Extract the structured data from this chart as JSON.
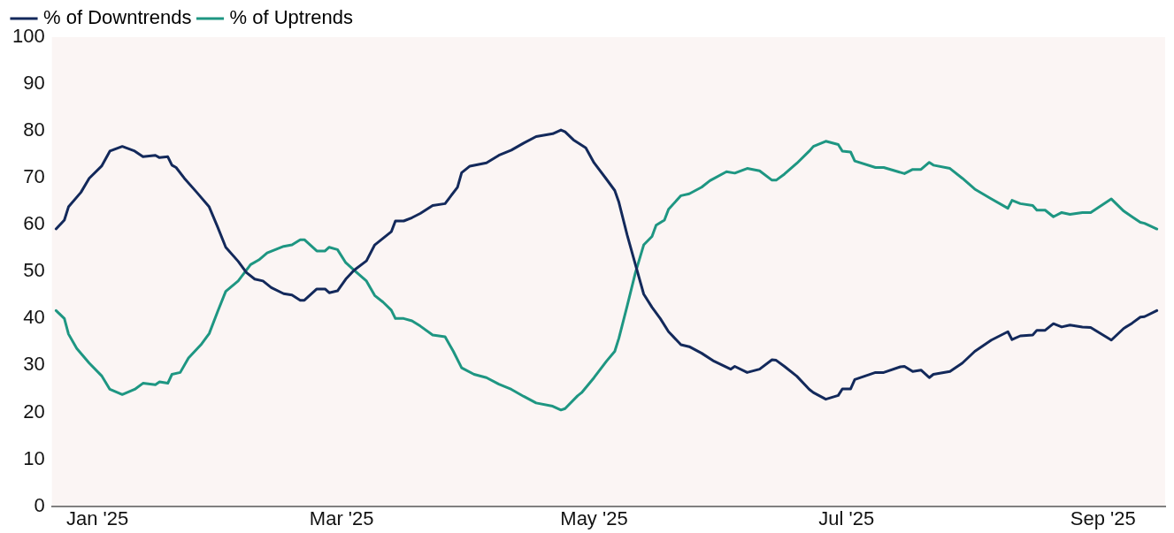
{
  "chart_data": {
    "type": "line",
    "legend": "top left",
    "grid": false,
    "marker": "none",
    "line_style": "solid",
    "xlim": [
      "2024-12-21",
      "2025-09-16"
    ],
    "xticks": [
      {
        "value": "2025-01-01",
        "label": "Jan '25"
      },
      {
        "value": "2025-03-01",
        "label": "Mar '25"
      },
      {
        "value": "2025-05-01",
        "label": "May '25"
      },
      {
        "value": "2025-07-01",
        "label": "Jul '25"
      },
      {
        "value": "2025-09-01",
        "label": "Sep '25"
      }
    ],
    "ylim": [
      0,
      100
    ],
    "yticks": [
      0,
      10,
      20,
      30,
      40,
      50,
      60,
      70,
      80,
      90,
      100
    ],
    "series": [
      {
        "name": "% of Downtrends",
        "color": "#13295b",
        "x": [
          "2024-12-22",
          "2024-12-24",
          "2024-12-25",
          "2024-12-28",
          "2024-12-30",
          "2025-01-02",
          "2025-01-04",
          "2025-01-07",
          "2025-01-10",
          "2025-01-12",
          "2025-01-15",
          "2025-01-16",
          "2025-01-18",
          "2025-01-19",
          "2025-01-20",
          "2025-01-22",
          "2025-01-25",
          "2025-01-28",
          "2025-01-30",
          "2025-02-01",
          "2025-02-04",
          "2025-02-06",
          "2025-02-08",
          "2025-02-10",
          "2025-02-12",
          "2025-02-15",
          "2025-02-17",
          "2025-02-19",
          "2025-02-20",
          "2025-02-23",
          "2025-02-25",
          "2025-02-26",
          "2025-02-28",
          "2025-03-02",
          "2025-03-04",
          "2025-03-07",
          "2025-03-09",
          "2025-03-11",
          "2025-03-13",
          "2025-03-14",
          "2025-03-16",
          "2025-03-18",
          "2025-03-20",
          "2025-03-23",
          "2025-03-26",
          "2025-03-29",
          "2025-03-30",
          "2025-04-01",
          "2025-04-05",
          "2025-04-08",
          "2025-04-11",
          "2025-04-14",
          "2025-04-17",
          "2025-04-21",
          "2025-04-23",
          "2025-04-24",
          "2025-04-26",
          "2025-04-29",
          "2025-05-01",
          "2025-05-04",
          "2025-05-06",
          "2025-05-07",
          "2025-05-09",
          "2025-05-11",
          "2025-05-13",
          "2025-05-15",
          "2025-05-17",
          "2025-05-19",
          "2025-05-22",
          "2025-05-24",
          "2025-05-27",
          "2025-05-30",
          "2025-06-03",
          "2025-06-04",
          "2025-06-07",
          "2025-06-10",
          "2025-06-13",
          "2025-06-14",
          "2025-06-16",
          "2025-06-19",
          "2025-06-22",
          "2025-06-23",
          "2025-06-26",
          "2025-06-29",
          "2025-06-30",
          "2025-07-02",
          "2025-07-03",
          "2025-07-08",
          "2025-07-10",
          "2025-07-14",
          "2025-07-15",
          "2025-07-17",
          "2025-07-19",
          "2025-07-21",
          "2025-07-22",
          "2025-07-26",
          "2025-07-29",
          "2025-08-01",
          "2025-08-05",
          "2025-08-09",
          "2025-08-10",
          "2025-08-12",
          "2025-08-15",
          "2025-08-16",
          "2025-08-18",
          "2025-08-20",
          "2025-08-22",
          "2025-08-24",
          "2025-08-27",
          "2025-08-29",
          "2025-09-03",
          "2025-09-06",
          "2025-09-08",
          "2025-09-10",
          "2025-09-11",
          "2025-09-14"
        ],
        "values": [
          59.1,
          61.0,
          63.8,
          66.9,
          69.9,
          72.5,
          75.7,
          76.7,
          75.7,
          74.5,
          74.8,
          74.3,
          74.5,
          72.7,
          72.2,
          69.9,
          66.9,
          63.8,
          59.6,
          55.2,
          52.2,
          49.8,
          48.4,
          48.0,
          46.6,
          45.3,
          45.0,
          43.9,
          43.9,
          46.3,
          46.3,
          45.5,
          45.9,
          48.4,
          50.3,
          52.3,
          55.7,
          57.1,
          58.5,
          60.8,
          60.8,
          61.5,
          62.4,
          64.1,
          64.5,
          68.0,
          71.1,
          72.5,
          73.2,
          74.8,
          75.9,
          77.4,
          78.8,
          79.4,
          80.2,
          79.8,
          78.1,
          76.4,
          73.2,
          69.7,
          67.3,
          64.8,
          57.8,
          51.5,
          45.2,
          42.4,
          40.0,
          37.2,
          34.4,
          34.0,
          32.6,
          30.9,
          29.2,
          29.8,
          28.5,
          29.2,
          31.2,
          31.1,
          29.8,
          27.7,
          24.9,
          24.2,
          22.8,
          23.6,
          25.0,
          25.0,
          27.0,
          28.5,
          28.5,
          29.7,
          29.8,
          28.7,
          29.0,
          27.4,
          28.1,
          28.7,
          30.5,
          33.0,
          35.4,
          37.2,
          35.5,
          36.3,
          36.5,
          37.5,
          37.5,
          38.9,
          38.2,
          38.6,
          38.2,
          38.1,
          35.4,
          37.9,
          39.0,
          40.3,
          40.4,
          41.7
        ]
      },
      {
        "name": "% of Uptrends",
        "color": "#1e9682",
        "x": [
          "2024-12-22",
          "2024-12-24",
          "2024-12-25",
          "2024-12-27",
          "2024-12-30",
          "2025-01-02",
          "2025-01-04",
          "2025-01-07",
          "2025-01-10",
          "2025-01-12",
          "2025-01-15",
          "2025-01-16",
          "2025-01-18",
          "2025-01-19",
          "2025-01-21",
          "2025-01-23",
          "2025-01-26",
          "2025-01-28",
          "2025-01-30",
          "2025-02-01",
          "2025-02-04",
          "2025-02-07",
          "2025-02-09",
          "2025-02-11",
          "2025-02-15",
          "2025-02-17",
          "2025-02-19",
          "2025-02-20",
          "2025-02-23",
          "2025-02-25",
          "2025-02-26",
          "2025-02-28",
          "2025-03-02",
          "2025-03-04",
          "2025-03-07",
          "2025-03-09",
          "2025-03-11",
          "2025-03-13",
          "2025-03-14",
          "2025-03-16",
          "2025-03-18",
          "2025-03-20",
          "2025-03-23",
          "2025-03-26",
          "2025-03-28",
          "2025-03-30",
          "2025-04-02",
          "2025-04-05",
          "2025-04-08",
          "2025-04-11",
          "2025-04-14",
          "2025-04-17",
          "2025-04-21",
          "2025-04-23",
          "2025-04-24",
          "2025-04-27",
          "2025-04-28",
          "2025-05-01",
          "2025-05-04",
          "2025-05-06",
          "2025-05-07",
          "2025-05-09",
          "2025-05-11",
          "2025-05-13",
          "2025-05-15",
          "2025-05-16",
          "2025-05-18",
          "2025-05-19",
          "2025-05-22",
          "2025-05-24",
          "2025-05-27",
          "2025-05-29",
          "2025-06-02",
          "2025-06-04",
          "2025-06-07",
          "2025-06-10",
          "2025-06-13",
          "2025-06-14",
          "2025-06-16",
          "2025-06-19",
          "2025-06-22",
          "2025-06-23",
          "2025-06-26",
          "2025-06-29",
          "2025-06-30",
          "2025-07-02",
          "2025-07-03",
          "2025-07-08",
          "2025-07-10",
          "2025-07-15",
          "2025-07-17",
          "2025-07-19",
          "2025-07-21",
          "2025-07-22",
          "2025-07-26",
          "2025-07-29",
          "2025-08-01",
          "2025-08-05",
          "2025-08-09",
          "2025-08-10",
          "2025-08-12",
          "2025-08-15",
          "2025-08-16",
          "2025-08-18",
          "2025-08-20",
          "2025-08-22",
          "2025-08-24",
          "2025-08-27",
          "2025-08-29",
          "2025-09-03",
          "2025-09-06",
          "2025-09-08",
          "2025-09-10",
          "2025-09-11",
          "2025-09-14"
        ],
        "values": [
          41.7,
          40.0,
          36.7,
          33.6,
          30.5,
          27.8,
          24.9,
          23.8,
          24.9,
          26.2,
          25.9,
          26.5,
          26.2,
          28.1,
          28.5,
          31.6,
          34.4,
          36.8,
          41.4,
          45.8,
          48.0,
          51.5,
          52.5,
          54.0,
          55.4,
          55.7,
          56.8,
          56.8,
          54.4,
          54.4,
          55.2,
          54.7,
          51.9,
          50.3,
          48.0,
          44.9,
          43.5,
          41.8,
          40.0,
          40.0,
          39.5,
          38.4,
          36.5,
          36.1,
          33.0,
          29.5,
          28.1,
          27.4,
          26.0,
          24.9,
          23.4,
          22.0,
          21.3,
          20.5,
          20.8,
          23.5,
          24.2,
          27.4,
          30.9,
          33.0,
          35.8,
          42.7,
          49.8,
          55.7,
          57.5,
          59.9,
          61.0,
          63.3,
          66.2,
          66.6,
          68.0,
          69.4,
          71.3,
          71.0,
          72.0,
          71.5,
          69.5,
          69.5,
          70.8,
          73.1,
          75.7,
          76.7,
          77.8,
          77.1,
          75.7,
          75.5,
          73.6,
          72.2,
          72.2,
          70.9,
          71.8,
          71.8,
          73.3,
          72.7,
          72.0,
          69.9,
          67.6,
          65.5,
          63.5,
          65.2,
          64.5,
          64.1,
          63.1,
          63.1,
          61.7,
          62.6,
          62.2,
          62.6,
          62.6,
          65.5,
          62.9,
          61.7,
          60.5,
          60.3,
          59.1
        ]
      }
    ]
  }
}
